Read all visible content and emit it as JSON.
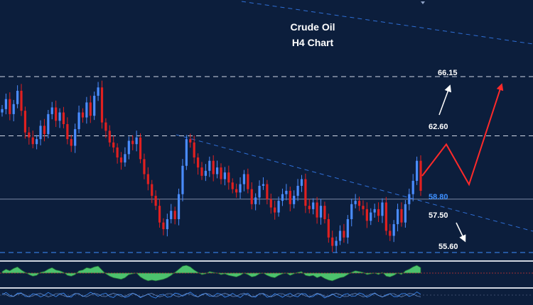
{
  "chart_data": {
    "type": "candlestick",
    "title": "Crude Oil",
    "subtitle": "H4 Chart",
    "price_range": [
      55.0,
      68.0
    ],
    "levels": [
      {
        "label": "66.15",
        "value": 66.15,
        "style": "dashed",
        "label_color": "#ffffff"
      },
      {
        "label": "62.60",
        "value": 62.6,
        "style": "dashed",
        "label_color": "#ffffff"
      },
      {
        "label": "58.80",
        "value": 58.8,
        "style": "solid",
        "label_color": "#3d8fff"
      },
      {
        "label": "57.50",
        "value": 57.5,
        "style": "none",
        "label_color": "#ffffff"
      },
      {
        "label": "55.60",
        "value": 55.6,
        "style": "dashed-blue",
        "label_color": "#ffffff"
      }
    ],
    "price_path": [
      64.2,
      64.8,
      63.9,
      64.5,
      65.3,
      64.1,
      62.8,
      62.5,
      62.1,
      62.4,
      63.2,
      62.7,
      63.9,
      64.3,
      63.5,
      64.0,
      63.3,
      62.4,
      62.0,
      63.0,
      64.0,
      63.7,
      64.6,
      63.8,
      65.0,
      65.5,
      63.4,
      62.9,
      62.2,
      61.9,
      61.3,
      61.0,
      61.5,
      62.3,
      62.1,
      62.5,
      61.2,
      60.3,
      59.7,
      59.0,
      58.4,
      57.4,
      57.0,
      57.6,
      58.1,
      57.6,
      59.1,
      60.8,
      62.4,
      62.2,
      61.3,
      60.7,
      60.2,
      60.5,
      61.1,
      60.3,
      60.7,
      60.0,
      60.4,
      59.8,
      59.4,
      59.2,
      59.7,
      60.3,
      59.4,
      58.5,
      58.9,
      59.6,
      59.7,
      58.8,
      58.3,
      58.0,
      58.7,
      59.1,
      59.3,
      58.5,
      59.0,
      59.6,
      60.0,
      58.4,
      58.2,
      58.6,
      57.7,
      58.4,
      57.6,
      56.5,
      56.0,
      56.3,
      56.9,
      56.5,
      57.6,
      58.5,
      58.7,
      58.4,
      58.2,
      57.5,
      58.0,
      58.2,
      57.8,
      58.6,
      56.9,
      56.6,
      57.3,
      58.2,
      57.4,
      58.5,
      59.1,
      59.9,
      61.1,
      59.3
    ],
    "levels_note": "",
    "bull_color": "#4a8cff",
    "bear_color": "#e02020",
    "projection_up_color": "#ff2a2a",
    "projection_down_color": "#ffffff",
    "oscillator": [
      0.2,
      0.5,
      0.3,
      0.6,
      0.8,
      0.4,
      0.1,
      -0.2,
      -0.4,
      -0.3,
      0.1,
      0.2,
      0.5,
      0.7,
      0.4,
      0.3,
      0.1,
      -0.3,
      -0.4,
      -0.2,
      0.3,
      0.4,
      0.7,
      0.6,
      0.8,
      0.9,
      0.4,
      -0.1,
      -0.4,
      -0.6,
      -0.7,
      -0.8,
      -0.6,
      -0.2,
      -0.1,
      0.0,
      -0.5,
      -0.8,
      -1.0,
      -0.9,
      -1.0,
      -0.9,
      -0.8,
      -0.6,
      -0.3,
      0.1,
      0.5,
      0.9,
      1.0,
      0.8,
      0.4,
      0.1,
      -0.2,
      -0.1,
      0.2,
      0.1,
      0.0,
      -0.2,
      -0.1,
      -0.3,
      -0.4,
      -0.5,
      -0.3,
      0.0,
      -0.2,
      -0.5,
      -0.4,
      -0.1,
      0.0,
      -0.3,
      -0.5,
      -0.6,
      -0.3,
      -0.1,
      0.0,
      -0.3,
      -0.1,
      0.1,
      0.2,
      -0.3,
      -0.4,
      -0.3,
      -0.6,
      -0.4,
      -0.7,
      -0.9,
      -1.0,
      -0.8,
      -0.6,
      -0.5,
      -0.2,
      0.1,
      0.3,
      0.2,
      0.1,
      -0.2,
      -0.1,
      0.0,
      -0.2,
      0.1,
      -0.4,
      -0.5,
      -0.3,
      0.0,
      -0.2,
      0.3,
      0.5,
      0.8,
      1.0,
      0.7
    ]
  }
}
